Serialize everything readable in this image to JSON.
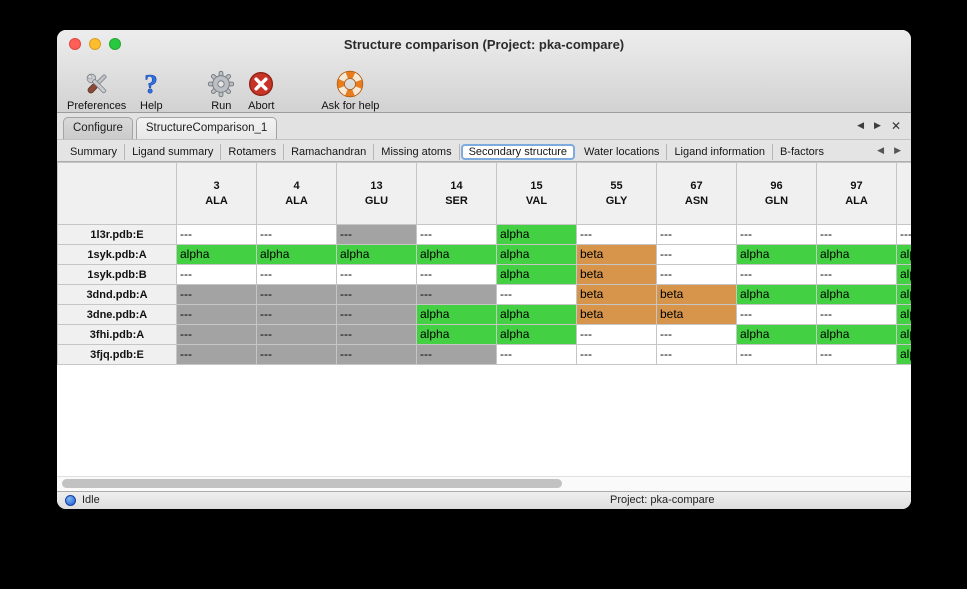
{
  "window": {
    "title": "Structure comparison (Project: pka-compare)"
  },
  "toolbar": {
    "items": [
      {
        "label": "Preferences",
        "icon": "tools-icon"
      },
      {
        "label": "Help",
        "icon": "question-mark-icon"
      },
      {
        "label": "Run",
        "icon": "gear-icon"
      },
      {
        "label": "Abort",
        "icon": "abort-x-icon"
      },
      {
        "label": "Ask for help",
        "icon": "lifebuoy-icon"
      }
    ]
  },
  "main_tabs": {
    "tabs": [
      {
        "label": "Configure",
        "active": false
      },
      {
        "label": "StructureComparison_1",
        "active": true
      }
    ],
    "controls": {
      "prev": "◀",
      "next": "▶",
      "close": "✕"
    }
  },
  "sub_tabs": {
    "tabs": [
      {
        "label": "Summary",
        "active": false
      },
      {
        "label": "Ligand summary",
        "active": false
      },
      {
        "label": "Rotamers",
        "active": false
      },
      {
        "label": "Ramachandran",
        "active": false
      },
      {
        "label": "Missing atoms",
        "active": false
      },
      {
        "label": "Secondary structure",
        "active": true
      },
      {
        "label": "Water locations",
        "active": false
      },
      {
        "label": "Ligand information",
        "active": false
      },
      {
        "label": "B-factors",
        "active": false
      }
    ],
    "controls": {
      "prev": "◀",
      "next": "▶"
    }
  },
  "table": {
    "columns": [
      {
        "number": "3",
        "residue": "ALA"
      },
      {
        "number": "4",
        "residue": "ALA"
      },
      {
        "number": "13",
        "residue": "GLU"
      },
      {
        "number": "14",
        "residue": "SER"
      },
      {
        "number": "15",
        "residue": "VAL"
      },
      {
        "number": "55",
        "residue": "GLY"
      },
      {
        "number": "67",
        "residue": "ASN"
      },
      {
        "number": "96",
        "residue": "GLN"
      },
      {
        "number": "97",
        "residue": "ALA"
      },
      {
        "number": "",
        "residue": ""
      }
    ],
    "rows": [
      {
        "label": "1l3r.pdb:E",
        "cells": [
          {
            "text": "---",
            "style": "white"
          },
          {
            "text": "---",
            "style": "white"
          },
          {
            "text": "---",
            "style": "gray"
          },
          {
            "text": "---",
            "style": "white"
          },
          {
            "text": "alpha",
            "style": "alpha"
          },
          {
            "text": "---",
            "style": "white"
          },
          {
            "text": "---",
            "style": "white"
          },
          {
            "text": "---",
            "style": "white"
          },
          {
            "text": "---",
            "style": "white"
          },
          {
            "text": "---",
            "style": "white"
          }
        ]
      },
      {
        "label": "1syk.pdb:A",
        "cells": [
          {
            "text": "alpha",
            "style": "alpha"
          },
          {
            "text": "alpha",
            "style": "alpha"
          },
          {
            "text": "alpha",
            "style": "alpha"
          },
          {
            "text": "alpha",
            "style": "alpha"
          },
          {
            "text": "alpha",
            "style": "alpha"
          },
          {
            "text": "beta",
            "style": "beta"
          },
          {
            "text": "---",
            "style": "white"
          },
          {
            "text": "alpha",
            "style": "alpha"
          },
          {
            "text": "alpha",
            "style": "alpha"
          },
          {
            "text": "alpha",
            "style": "alpha"
          }
        ]
      },
      {
        "label": "1syk.pdb:B",
        "cells": [
          {
            "text": "---",
            "style": "white"
          },
          {
            "text": "---",
            "style": "white"
          },
          {
            "text": "---",
            "style": "white"
          },
          {
            "text": "---",
            "style": "white"
          },
          {
            "text": "alpha",
            "style": "alpha"
          },
          {
            "text": "beta",
            "style": "beta"
          },
          {
            "text": "---",
            "style": "white"
          },
          {
            "text": "---",
            "style": "white"
          },
          {
            "text": "---",
            "style": "white"
          },
          {
            "text": "alpha",
            "style": "alpha"
          }
        ]
      },
      {
        "label": "3dnd.pdb:A",
        "cells": [
          {
            "text": "---",
            "style": "gray"
          },
          {
            "text": "---",
            "style": "gray"
          },
          {
            "text": "---",
            "style": "gray"
          },
          {
            "text": "---",
            "style": "gray"
          },
          {
            "text": "---",
            "style": "white"
          },
          {
            "text": "beta",
            "style": "beta"
          },
          {
            "text": "beta",
            "style": "beta"
          },
          {
            "text": "alpha",
            "style": "alpha"
          },
          {
            "text": "alpha",
            "style": "alpha"
          },
          {
            "text": "alpha",
            "style": "alpha"
          }
        ]
      },
      {
        "label": "3dne.pdb:A",
        "cells": [
          {
            "text": "---",
            "style": "gray"
          },
          {
            "text": "---",
            "style": "gray"
          },
          {
            "text": "---",
            "style": "gray"
          },
          {
            "text": "alpha",
            "style": "alpha"
          },
          {
            "text": "alpha",
            "style": "alpha"
          },
          {
            "text": "beta",
            "style": "beta"
          },
          {
            "text": "beta",
            "style": "beta"
          },
          {
            "text": "---",
            "style": "white"
          },
          {
            "text": "---",
            "style": "white"
          },
          {
            "text": "alpha",
            "style": "alpha"
          }
        ]
      },
      {
        "label": "3fhi.pdb:A",
        "cells": [
          {
            "text": "---",
            "style": "gray"
          },
          {
            "text": "---",
            "style": "gray"
          },
          {
            "text": "---",
            "style": "gray"
          },
          {
            "text": "alpha",
            "style": "alpha"
          },
          {
            "text": "alpha",
            "style": "alpha"
          },
          {
            "text": "---",
            "style": "white"
          },
          {
            "text": "---",
            "style": "white"
          },
          {
            "text": "alpha",
            "style": "alpha"
          },
          {
            "text": "alpha",
            "style": "alpha"
          },
          {
            "text": "alpha",
            "style": "alpha"
          }
        ]
      },
      {
        "label": "3fjq.pdb:E",
        "cells": [
          {
            "text": "---",
            "style": "gray"
          },
          {
            "text": "---",
            "style": "gray"
          },
          {
            "text": "---",
            "style": "gray"
          },
          {
            "text": "---",
            "style": "gray"
          },
          {
            "text": "---",
            "style": "white"
          },
          {
            "text": "---",
            "style": "white"
          },
          {
            "text": "---",
            "style": "white"
          },
          {
            "text": "---",
            "style": "white"
          },
          {
            "text": "---",
            "style": "white"
          },
          {
            "text": "alpha",
            "style": "alpha"
          }
        ]
      }
    ]
  },
  "status_bar": {
    "status": "Idle",
    "project": "Project: pka-compare"
  },
  "colors": {
    "alpha": "#43d143",
    "beta": "#d6954b",
    "none_gray": "#a3a3a3",
    "none_white": "#ffffff",
    "selected_tab_ring": "#7cabdd",
    "status_dot_blue": "#1b54c9"
  }
}
